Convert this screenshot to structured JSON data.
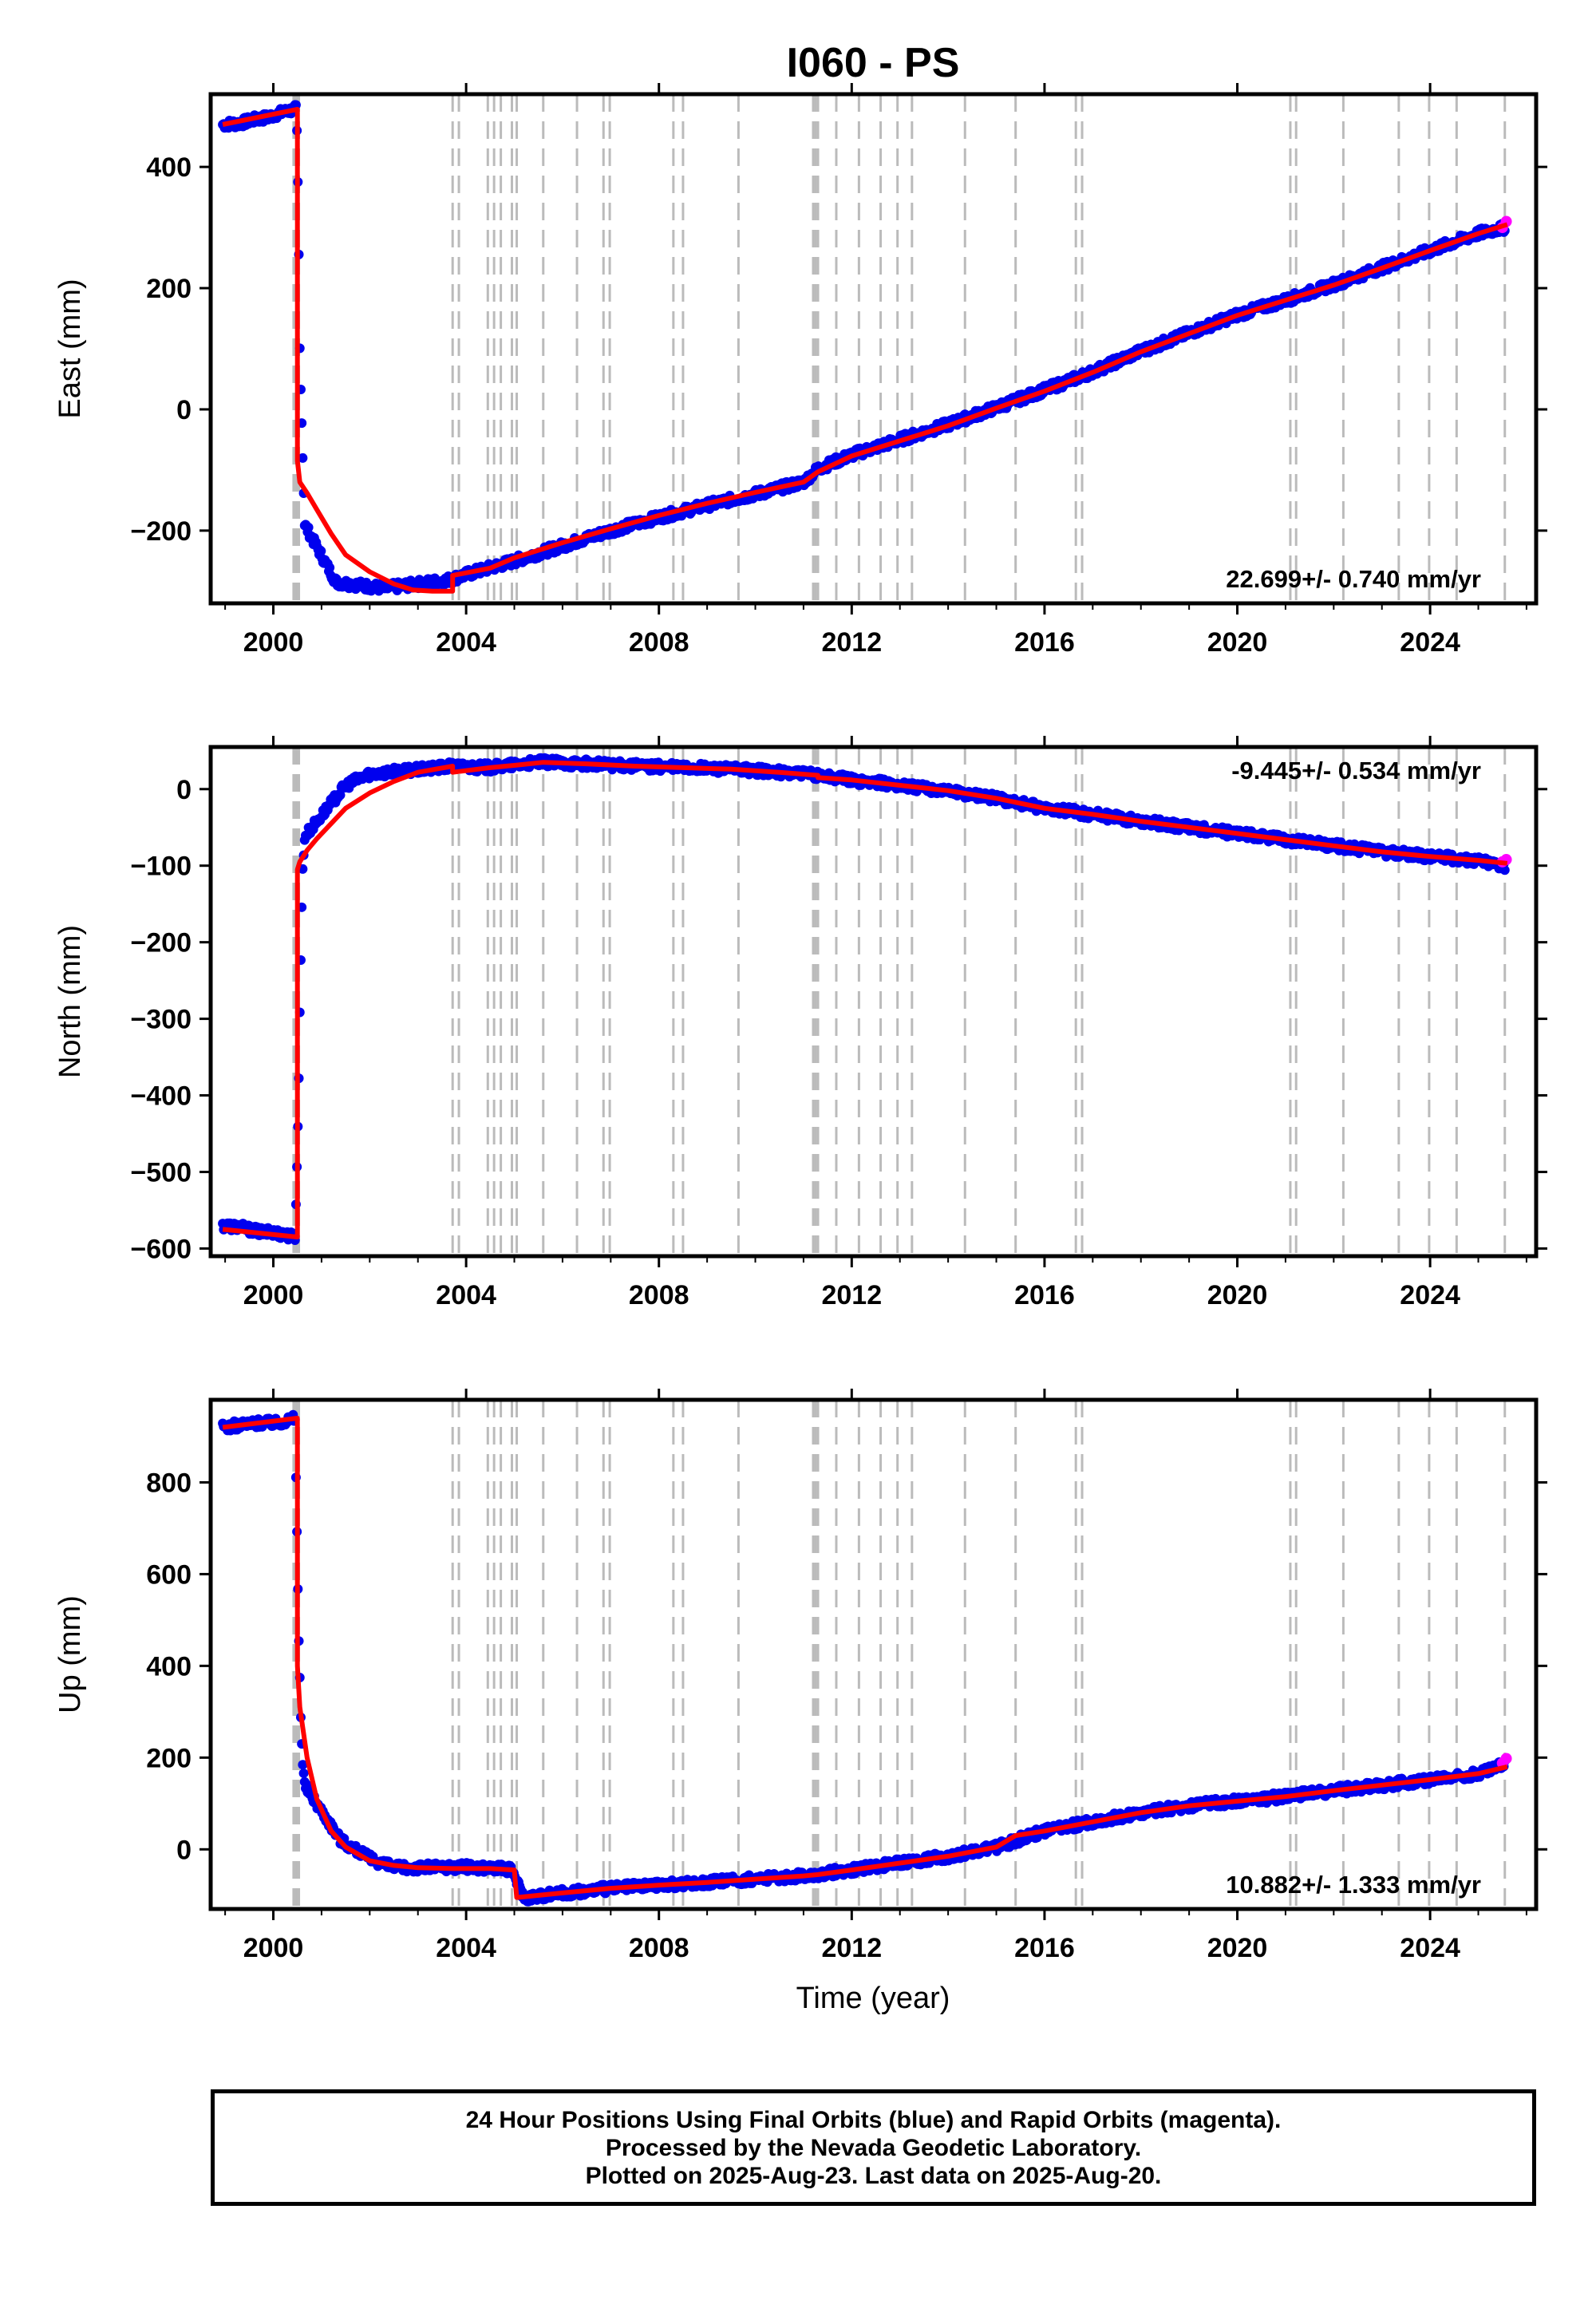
{
  "chart_data": {
    "type": "scatter",
    "title": "I060 - PS",
    "xlabel": "Time (year)",
    "xlim": [
      1998.7,
      2026.2
    ],
    "x_ticks": [
      "2000",
      "2004",
      "2008",
      "2012",
      "2016",
      "2020",
      "2024"
    ],
    "colors": {
      "final_orbits": "#0000ee",
      "rapid_orbits": "#ff00ff",
      "model": "#ff0000",
      "event_lines": "#bbbbbb"
    },
    "event_lines": [
      2000.42,
      2000.45,
      2000.48,
      2000.5,
      2000.53,
      2003.72,
      2003.85,
      2004.45,
      2004.58,
      2004.72,
      2004.95,
      2005.05,
      2005.6,
      2006.3,
      2006.85,
      2006.98,
      2008.3,
      2008.5,
      2009.65,
      2011.2,
      2011.25,
      2011.3,
      2011.68,
      2012.15,
      2012.6,
      2012.95,
      2013.25,
      2014.35,
      2015.4,
      2016.65,
      2016.78,
      2021.1,
      2021.22,
      2022.2,
      2023.35,
      2023.98,
      2024.55,
      2025.55
    ],
    "panels": [
      {
        "name": "east",
        "ylabel": "East (mm)",
        "ylim": [
          -320,
          520
        ],
        "y_ticks": [
          -200,
          0,
          200,
          400
        ],
        "y_tick_labels": [
          "−200",
          "0",
          "200",
          "400"
        ],
        "velocity_text": "22.699+/- 0.740 mm/yr",
        "model": {
          "x": [
            1998.95,
            2000.5,
            2000.5,
            2000.55,
            2000.7,
            2000.9,
            2001.2,
            2001.5,
            2002.0,
            2002.5,
            2002.9,
            2003.3,
            2003.72,
            2003.72,
            2004.5,
            2005.0,
            2006.0,
            2007.0,
            2008.0,
            2009.0,
            2010.0,
            2011.0,
            2011.3,
            2012.0,
            2013.0,
            2014.0,
            2015.0,
            2016.0,
            2017.0,
            2018.0,
            2019.0,
            2020.0,
            2021.0,
            2022.0,
            2023.0,
            2024.0,
            2025.0,
            2025.6
          ],
          "y": [
            470,
            495,
            -85,
            -120,
            -138,
            -165,
            -205,
            -240,
            -268,
            -288,
            -298,
            -300,
            -300,
            -274,
            -262,
            -245,
            -220,
            -197,
            -175,
            -155,
            -137,
            -120,
            -103,
            -77,
            -52,
            -27,
            2,
            30,
            61,
            95,
            125,
            155,
            180,
            205,
            233,
            262,
            290,
            305
          ]
        },
        "scatter": {
          "x": [
            1998.95,
            1999.3,
            1999.6,
            1999.9,
            2000.1,
            2000.3,
            2000.48,
            2000.52,
            2000.55,
            2000.6,
            2000.65,
            2001.3,
            2001.8,
            2002.3,
            2002.8,
            2003.3,
            2003.6,
            2004.2,
            2005.0,
            2006.0,
            2007.0,
            2008.0,
            2009.0,
            2010.0,
            2011.0,
            2011.3,
            2012.0,
            2013.0,
            2014.0,
            2015.0,
            2016.0,
            2017.0,
            2018.0,
            2019.0,
            2020.0,
            2021.0,
            2022.0,
            2023.0,
            2024.0,
            2025.0,
            2025.55
          ],
          "y": [
            470,
            472,
            478,
            482,
            488,
            492,
            496,
            330,
            100,
            -50,
            -190,
            -285,
            -290,
            -295,
            -290,
            -285,
            -282,
            -268,
            -250,
            -225,
            -200,
            -178,
            -158,
            -140,
            -120,
            -98,
            -75,
            -50,
            -25,
            3,
            32,
            62,
            96,
            126,
            156,
            180,
            206,
            234,
            262,
            290,
            300
          ]
        },
        "rapid": {
          "x": [
            2025.5,
            2025.58
          ],
          "y": [
            300,
            310
          ]
        }
      },
      {
        "name": "north",
        "ylabel": "North (mm)",
        "ylim": [
          -610,
          55
        ],
        "y_ticks": [
          -600,
          -500,
          -400,
          -300,
          -200,
          -100,
          0
        ],
        "y_tick_labels": [
          "−600",
          "−500",
          "−400",
          "−300",
          "−200",
          "−100",
          "0"
        ],
        "velocity_text": "-9.445+/- 0.534 mm/yr",
        "model": {
          "x": [
            1998.95,
            2000.5,
            2000.5,
            2000.55,
            2000.7,
            2000.9,
            2001.2,
            2001.5,
            2002.0,
            2002.5,
            2003.0,
            2003.72,
            2003.72,
            2004.5,
            2005.0,
            2005.6,
            2006.5,
            2007.5,
            2008.5,
            2009.5,
            2010.5,
            2011.3,
            2011.3,
            2012.0,
            2013.0,
            2014.0,
            2015.0,
            2016.0,
            2017.0,
            2018.0,
            2019.0,
            2020.0,
            2021.0,
            2022.0,
            2023.0,
            2024.0,
            2025.0,
            2025.6
          ],
          "y": [
            -575,
            -585,
            -105,
            -95,
            -80,
            -65,
            -45,
            -25,
            -5,
            10,
            22,
            30,
            22,
            28,
            31,
            35,
            33,
            30,
            28,
            26,
            22,
            18,
            15,
            12,
            5,
            -2,
            -12,
            -25,
            -33,
            -42,
            -50,
            -58,
            -66,
            -74,
            -82,
            -88,
            -93,
            -97
          ]
        },
        "scatter": {
          "x": [
            1998.95,
            1999.3,
            1999.7,
            2000.1,
            2000.45,
            2000.52,
            2000.56,
            2000.6,
            2000.65,
            2001.5,
            2002.0,
            2003.0,
            2003.72,
            2004.5,
            2005.5,
            2006.5,
            2007.5,
            2008.5,
            2009.5,
            2010.5,
            2011.3,
            2012.0,
            2013.0,
            2014.0,
            2015.0,
            2016.0,
            2017.0,
            2018.0,
            2019.0,
            2020.0,
            2021.0,
            2022.0,
            2023.0,
            2024.0,
            2025.0,
            2025.55
          ],
          "y": [
            -570,
            -572,
            -578,
            -580,
            -585,
            -420,
            -250,
            -120,
            -62,
            5,
            20,
            25,
            30,
            28,
            35,
            33,
            30,
            28,
            26,
            22,
            18,
            12,
            5,
            -2,
            -12,
            -25,
            -33,
            -42,
            -50,
            -58,
            -66,
            -74,
            -82,
            -88,
            -93,
            -100
          ]
        },
        "rapid": {
          "x": [
            2025.5,
            2025.58
          ],
          "y": [
            -95,
            -92
          ]
        }
      },
      {
        "name": "up",
        "ylabel": "Up (mm)",
        "ylim": [
          -130,
          980
        ],
        "y_ticks": [
          0,
          200,
          400,
          600,
          800
        ],
        "y_tick_labels": [
          "0",
          "200",
          "400",
          "600",
          "800"
        ],
        "velocity_text": "10.882+/- 1.333 mm/yr",
        "model": {
          "x": [
            1998.95,
            2000.5,
            2000.5,
            2000.55,
            2000.7,
            2000.9,
            2001.2,
            2001.5,
            2002.0,
            2002.5,
            2003.0,
            2003.72,
            2003.72,
            2004.5,
            2005.0,
            2005.05,
            2006.0,
            2007.0,
            2008.0,
            2009.0,
            2010.0,
            2011.0,
            2011.3,
            2012.0,
            2013.0,
            2014.0,
            2015.0,
            2015.4,
            2016.0,
            2017.0,
            2018.0,
            2019.0,
            2020.0,
            2021.0,
            2022.0,
            2023.0,
            2024.0,
            2025.0,
            2025.6
          ],
          "y": [
            920,
            940,
            400,
            310,
            200,
            110,
            40,
            5,
            -25,
            -35,
            -40,
            -42,
            -42,
            -42,
            -45,
            -105,
            -95,
            -85,
            -78,
            -72,
            -65,
            -58,
            -55,
            -45,
            -30,
            -15,
            5,
            30,
            40,
            60,
            80,
            95,
            105,
            115,
            128,
            140,
            152,
            165,
            180
          ]
        },
        "scatter": {
          "x": [
            1998.95,
            1999.3,
            1999.7,
            2000.1,
            2000.45,
            2000.52,
            2000.56,
            2000.6,
            2000.65,
            2001.4,
            2002.0,
            2002.5,
            2003.0,
            2003.72,
            2004.5,
            2004.95,
            2005.2,
            2006.0,
            2007.0,
            2008.0,
            2009.0,
            2010.0,
            2011.0,
            2012.0,
            2013.0,
            2014.0,
            2015.0,
            2016.0,
            2017.0,
            2018.0,
            2019.0,
            2020.0,
            2021.0,
            2022.0,
            2023.0,
            2024.0,
            2025.0,
            2025.55
          ],
          "y": [
            920,
            925,
            930,
            930,
            940,
            500,
            330,
            200,
            140,
            20,
            -20,
            -40,
            -40,
            -38,
            -40,
            -45,
            -105,
            -95,
            -85,
            -78,
            -72,
            -65,
            -58,
            -45,
            -30,
            -15,
            5,
            40,
            60,
            80,
            95,
            105,
            115,
            128,
            140,
            152,
            165,
            185
          ]
        },
        "rapid": {
          "x": [
            2025.5,
            2025.58
          ],
          "y": [
            188,
            198
          ]
        }
      }
    ]
  },
  "footer": {
    "line1": "24 Hour Positions Using Final Orbits (blue) and Rapid Orbits (magenta).",
    "line2": "Processed by the Nevada Geodetic Laboratory.",
    "line3": "Plotted on 2025-Aug-23. Last data on 2025-Aug-20."
  }
}
